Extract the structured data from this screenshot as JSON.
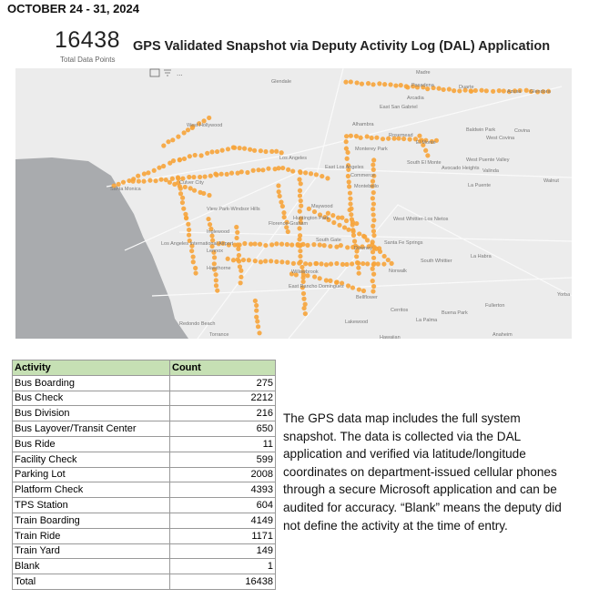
{
  "header": {
    "date": "OCTOBER 24 - 31, 2024",
    "kpi_value": "16438",
    "kpi_label": "Total Data Points",
    "title": "GPS Validated Snapshot via Deputy Activity Log (DAL) Application"
  },
  "map": {
    "labels": [
      "Madre",
      "Pasadena",
      "Duarte",
      "Azusa",
      "Glendora",
      "Glendale",
      "Arcadia",
      "East San Gabriel",
      "Alhambra",
      "Rosemead",
      "El Monte",
      "Baldwin Park",
      "West Covina",
      "Covina",
      "Monterey Park",
      "South El Monte",
      "West Puente Valley",
      "Avocado Heights",
      "Valinda",
      "Los Angeles",
      "East Los Angeles",
      "Commerce",
      "Montebello",
      "La Puente",
      "Walnut",
      "Culver City",
      "West Hollywood",
      "Santa Monica",
      "View Park-Windsor Hills",
      "Maywood",
      "Huntington Park",
      "Florence-Graham",
      "South Gate",
      "West Whittier-Los Nietos",
      "Inglewood",
      "Los Angeles International Airport",
      "Lennox",
      "Hawthorne",
      "Downey",
      "Santa Fe Springs",
      "Norwalk",
      "South Whittier",
      "La Habra",
      "Willowbrook",
      "East Rancho Dominguez",
      "Bellflower",
      "Cerritos",
      "Buena Park",
      "Fullerton",
      "Redondo Beach",
      "Torrance",
      "Lakewood",
      "La Palma",
      "Anaheim",
      "Yorba Linda",
      "Hawaiian"
    ]
  },
  "table": {
    "header": [
      "Activity",
      "Count"
    ],
    "rows": [
      [
        "Bus Boarding",
        "275"
      ],
      [
        "Bus Check",
        "2212"
      ],
      [
        "Bus Division",
        "216"
      ],
      [
        "Bus Layover/Transit Center",
        "650"
      ],
      [
        "Bus Ride",
        "11"
      ],
      [
        "Facility Check",
        "599"
      ],
      [
        "Parking Lot",
        "2008"
      ],
      [
        "Platform Check",
        "4393"
      ],
      [
        "TPS Station",
        "604"
      ],
      [
        "Train Boarding",
        "4149"
      ],
      [
        "Train Ride",
        "1171"
      ],
      [
        "Train Yard",
        "149"
      ],
      [
        "Blank",
        "1"
      ]
    ],
    "total": [
      "Total",
      "16438"
    ]
  },
  "note": "The GPS data map includes the full system snapshot. The data is collected via the DAL application and verified via latitude/longitude coordinates on department-issued cellular phones through a secure Microsoft application and can be audited for accuracy. “Blank” means the deputy did not define the activity at the time of entry."
}
